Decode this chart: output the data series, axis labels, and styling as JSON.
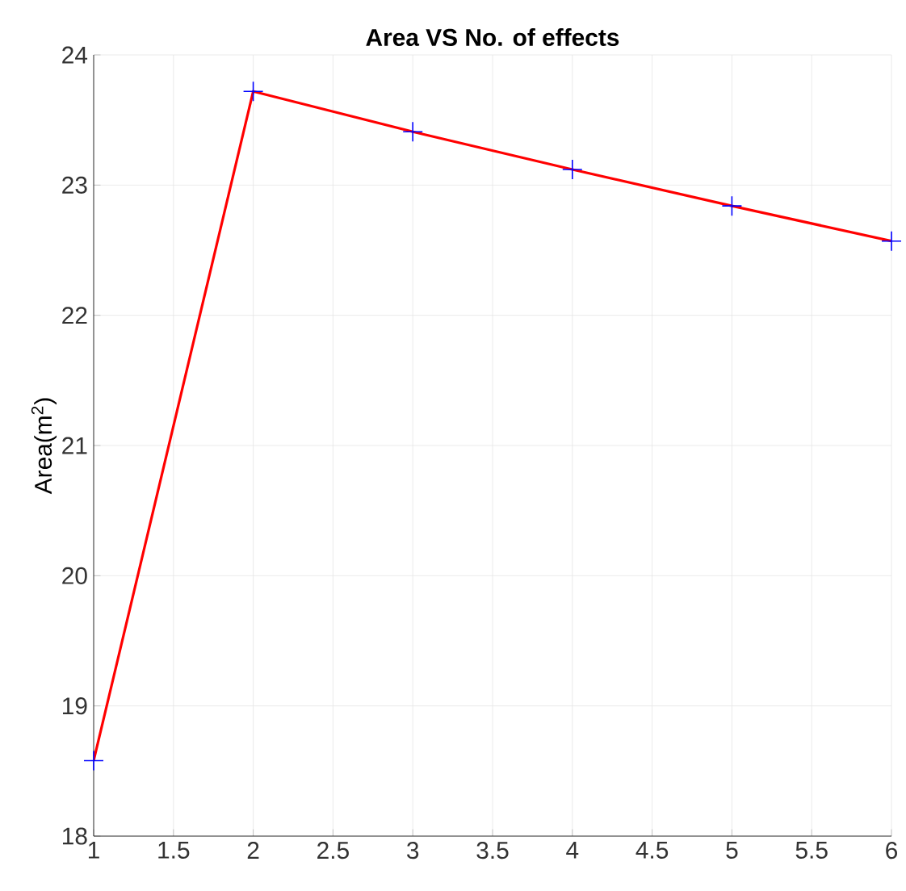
{
  "chart_data": {
    "type": "line",
    "title": "Area VS No. of effects",
    "ylabel": "Area(m$^{2}$)",
    "x": [
      1,
      2,
      3,
      4,
      5,
      6
    ],
    "series": [
      {
        "color": "#ff0000",
        "colors": [
          "#0000ff",
          "#0000ff",
          "#0000ff",
          "#0000ff",
          "#0000ff",
          "#0000ff"
        ],
        "values": [
          18.58,
          23.72,
          23.41,
          23.12,
          22.84,
          22.57
        ]
      }
    ],
    "xlim": [
      1,
      6
    ],
    "xticks": [
      1,
      1.5,
      2,
      2.5,
      3,
      3.5,
      4,
      4.5,
      5,
      5.5,
      6
    ],
    "ylim": [
      18,
      24
    ],
    "yticks": [
      18,
      19,
      20,
      21,
      22,
      23,
      24
    ],
    "grid": true,
    "marker": "cross",
    "line_style": "solid"
  }
}
